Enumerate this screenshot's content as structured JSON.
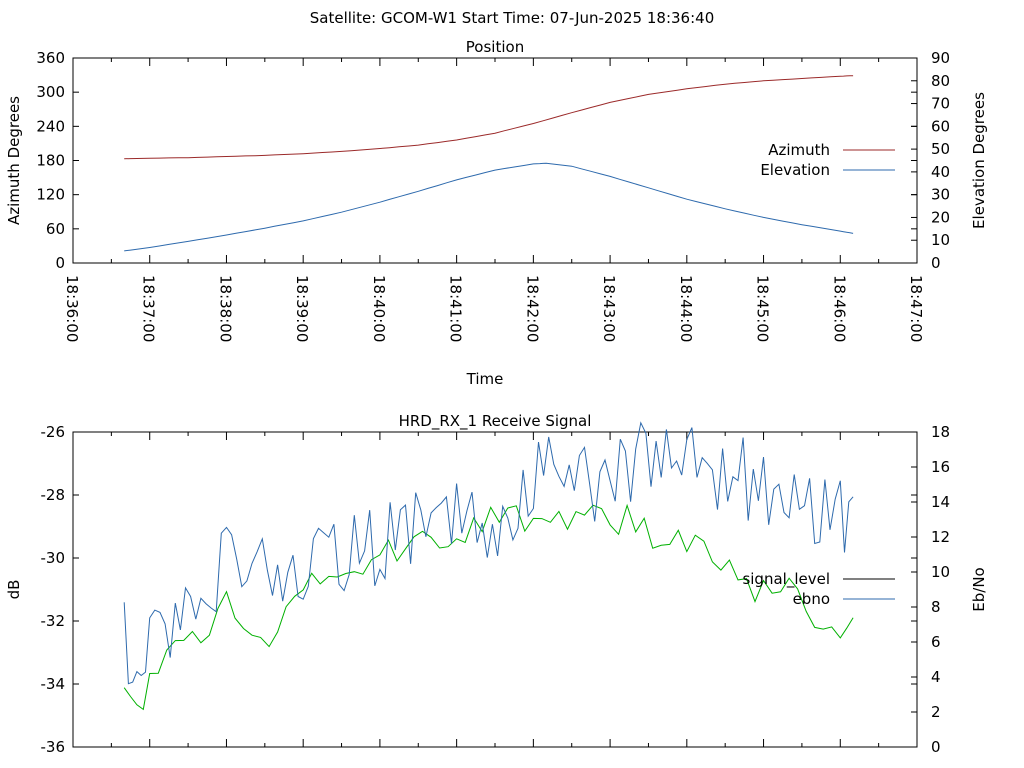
{
  "header": {
    "title": "Satellite: GCOM-W1    Start Time: 07-Jun-2025 18:36:40"
  },
  "colors": {
    "azimuth": "#9b2a2a",
    "elevation": "#2e6aad",
    "signal_level": "#00b000",
    "ebno": "#2e6aad",
    "legend_signal_level": "#000000",
    "axis": "#000000"
  },
  "chart_data": [
    {
      "type": "line",
      "title": "Position",
      "xlabel": "Time",
      "ylabel": "Azimuth Degrees",
      "y2label": "Elevation Degrees",
      "xlim": [
        "18:36:00",
        "18:47:00"
      ],
      "xticks": [
        "18:36:00",
        "18:37:00",
        "18:38:00",
        "18:39:00",
        "18:40:00",
        "18:41:00",
        "18:42:00",
        "18:43:00",
        "18:44:00",
        "18:45:00",
        "18:46:00",
        "18:47:00"
      ],
      "ylim": [
        0,
        360
      ],
      "yticks": [
        "0",
        "60",
        "120",
        "180",
        "240",
        "300",
        "360"
      ],
      "y2lim": [
        0,
        90
      ],
      "y2ticks": [
        "0",
        "10",
        "20",
        "30",
        "40",
        "50",
        "60",
        "70",
        "80",
        "90"
      ],
      "legend_position": "right",
      "series": [
        {
          "name": "Azimuth",
          "axis": "left",
          "x": [
            "18:36:40",
            "18:37:00",
            "18:37:30",
            "18:38:00",
            "18:38:30",
            "18:39:00",
            "18:39:30",
            "18:40:00",
            "18:40:30",
            "18:41:00",
            "18:41:30",
            "18:42:00",
            "18:42:30",
            "18:43:00",
            "18:43:30",
            "18:44:00",
            "18:44:30",
            "18:45:00",
            "18:45:30",
            "18:46:00",
            "18:46:10"
          ],
          "values": [
            183,
            184,
            185,
            187,
            189,
            192,
            196,
            201,
            207,
            216,
            228,
            245,
            264,
            282,
            296,
            306,
            314,
            320,
            324,
            328,
            329
          ]
        },
        {
          "name": "Elevation",
          "axis": "right",
          "x": [
            "18:36:40",
            "18:37:00",
            "18:37:30",
            "18:38:00",
            "18:38:30",
            "18:39:00",
            "18:39:30",
            "18:40:00",
            "18:40:30",
            "18:41:00",
            "18:41:30",
            "18:42:00",
            "18:42:10",
            "18:42:30",
            "18:43:00",
            "18:43:30",
            "18:44:00",
            "18:44:30",
            "18:45:00",
            "18:45:30",
            "18:46:00",
            "18:46:10"
          ],
          "values": [
            5.3,
            6.8,
            9.5,
            12.3,
            15.3,
            18.5,
            22.3,
            26.7,
            31.5,
            36.5,
            40.8,
            43.5,
            43.8,
            42.5,
            38.0,
            33.0,
            28.0,
            23.8,
            20.0,
            16.8,
            14.0,
            13.0
          ]
        }
      ]
    },
    {
      "type": "line",
      "title": "HRD_RX_1 Receive Signal",
      "xlabel": "",
      "ylabel": "dB",
      "y2label": "Eb/No",
      "xlim": [
        "18:36:00",
        "18:47:00"
      ],
      "ylim": [
        -36,
        -26
      ],
      "yticks": [
        "-36",
        "-34",
        "-32",
        "-30",
        "-28",
        "-26"
      ],
      "y2lim": [
        0,
        18
      ],
      "y2ticks": [
        "0",
        "2",
        "4",
        "6",
        "8",
        "10",
        "12",
        "14",
        "16",
        "18"
      ],
      "legend_position": "right",
      "series": [
        {
          "name": "signal_level",
          "axis": "left",
          "x": [
            "18:36:40",
            "18:36:50",
            "18:37:00",
            "18:37:20",
            "18:37:40",
            "18:38:00",
            "18:38:20",
            "18:38:40",
            "18:39:00",
            "18:39:20",
            "18:39:40",
            "18:40:00",
            "18:40:20",
            "18:40:40",
            "18:41:00",
            "18:41:20",
            "18:41:40",
            "18:42:00",
            "18:42:20",
            "18:42:40",
            "18:43:00",
            "18:43:20",
            "18:43:40",
            "18:44:00",
            "18:44:20",
            "18:44:40",
            "18:45:00",
            "18:45:20",
            "18:45:40",
            "18:46:00",
            "18:46:10"
          ],
          "values": [
            -33.8,
            -35.0,
            -34.0,
            -33.0,
            -32.5,
            -31.5,
            -32.0,
            -32.5,
            -30.6,
            -30.2,
            -30.8,
            -30.0,
            -29.6,
            -29.2,
            -29.4,
            -29.0,
            -28.6,
            -29.2,
            -28.8,
            -28.6,
            -28.8,
            -28.7,
            -29.8,
            -29.3,
            -30.0,
            -30.5,
            -31.2,
            -30.6,
            -32.0,
            -32.5,
            -31.9
          ]
        },
        {
          "name": "ebno",
          "axis": "right",
          "x": [
            "18:36:40",
            "18:36:50",
            "18:37:00",
            "18:37:20",
            "18:37:40",
            "18:38:00",
            "18:38:20",
            "18:38:40",
            "18:39:00",
            "18:39:20",
            "18:39:40",
            "18:40:00",
            "18:40:20",
            "18:40:40",
            "18:41:00",
            "18:41:20",
            "18:41:40",
            "18:42:00",
            "18:42:20",
            "18:42:40",
            "18:43:00",
            "18:43:20",
            "18:43:40",
            "18:44:00",
            "18:44:20",
            "18:44:40",
            "18:45:00",
            "18:45:20",
            "18:45:40",
            "18:46:00",
            "18:46:10"
          ],
          "values": [
            6.5,
            4.0,
            7.5,
            6.5,
            8.5,
            10.5,
            9.0,
            10.0,
            9.5,
            11.0,
            11.0,
            11.5,
            12.5,
            12.0,
            13.0,
            12.5,
            13.5,
            15.0,
            15.5,
            15.0,
            15.5,
            16.0,
            16.5,
            16.5,
            16.0,
            15.5,
            14.5,
            14.0,
            13.5,
            13.0,
            14.3
          ]
        }
      ]
    }
  ]
}
